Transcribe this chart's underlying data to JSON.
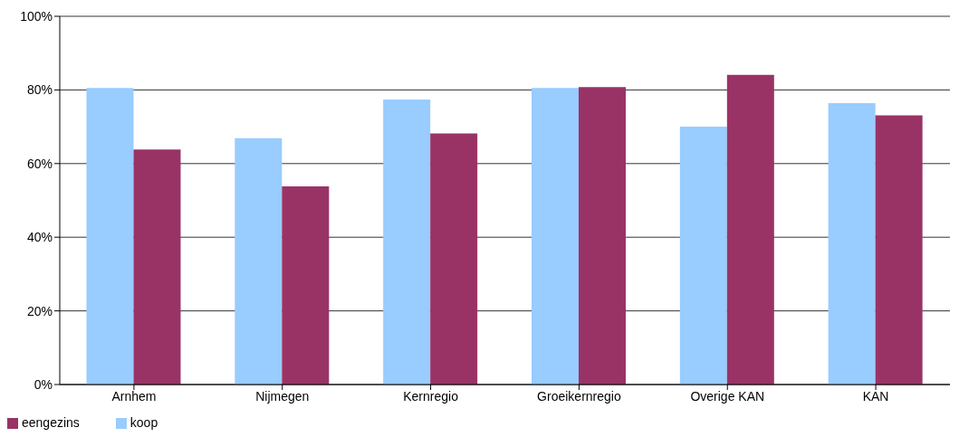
{
  "chart_data": {
    "type": "bar",
    "categories": [
      "Arnhem",
      "Nijmegen",
      "Kernregio",
      "Groeikernregio",
      "Overige KAN",
      "KAN"
    ],
    "series": [
      {
        "name": "koop",
        "color": "#99ccff",
        "values": [
          80.5,
          66.9,
          77.4,
          80.5,
          70,
          76.4
        ]
      },
      {
        "name": "eengezins",
        "color": "#993366",
        "values": [
          63.8,
          53.8,
          68.2,
          80.8,
          84.1,
          73.1
        ]
      }
    ],
    "ylim": [
      0,
      100
    ],
    "yticks": [
      {
        "value": 0,
        "label": "0%"
      },
      {
        "value": 20,
        "label": "20%"
      },
      {
        "value": 40,
        "label": "40%"
      },
      {
        "value": 60,
        "label": "60%"
      },
      {
        "value": 80,
        "label": "80%"
      },
      {
        "value": 100,
        "label": "100%"
      }
    ],
    "grid": "y",
    "legend": "bottom left"
  }
}
